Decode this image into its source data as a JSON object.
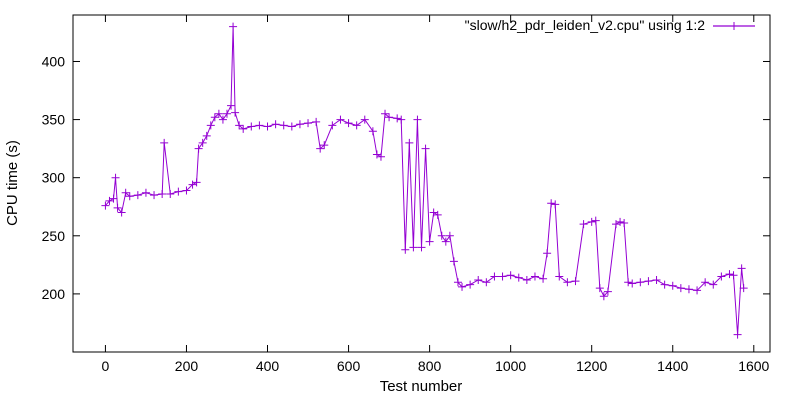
{
  "chart_data": {
    "type": "line",
    "xlabel": "Test number",
    "ylabel": "CPU time (s)",
    "xlim": [
      -80,
      1640
    ],
    "ylim": [
      150,
      440
    ],
    "xticks": [
      0,
      200,
      400,
      600,
      800,
      1000,
      1200,
      1400,
      1600
    ],
    "yticks": [
      200,
      250,
      300,
      350,
      400
    ],
    "grid": false,
    "legend_position": "top-right",
    "color": "#9400D3",
    "marker": "plus",
    "series": [
      {
        "name": "\"slow/h2_pdr_leiden_v2.cpu\" using 1:2",
        "x": [
          0,
          10,
          20,
          25,
          30,
          40,
          50,
          60,
          80,
          100,
          120,
          140,
          145,
          160,
          180,
          200,
          215,
          225,
          230,
          240,
          250,
          260,
          270,
          280,
          290,
          300,
          310,
          315,
          320,
          330,
          340,
          360,
          380,
          400,
          420,
          440,
          460,
          480,
          500,
          520,
          530,
          540,
          560,
          580,
          600,
          620,
          640,
          660,
          670,
          680,
          690,
          700,
          720,
          730,
          740,
          750,
          760,
          770,
          780,
          790,
          800,
          810,
          820,
          830,
          840,
          850,
          860,
          870,
          880,
          900,
          920,
          940,
          960,
          980,
          1000,
          1020,
          1040,
          1060,
          1080,
          1090,
          1100,
          1110,
          1120,
          1140,
          1160,
          1180,
          1200,
          1210,
          1220,
          1230,
          1240,
          1260,
          1270,
          1280,
          1290,
          1300,
          1320,
          1340,
          1360,
          1380,
          1400,
          1420,
          1440,
          1460,
          1480,
          1500,
          1520,
          1540,
          1550,
          1560,
          1570,
          1575
        ],
        "y": [
          276,
          280,
          282,
          300,
          274,
          270,
          287,
          284,
          285,
          287,
          285,
          286,
          330,
          286,
          288,
          289,
          294,
          296,
          325,
          330,
          336,
          345,
          352,
          355,
          350,
          355,
          362,
          430,
          356,
          345,
          342,
          344,
          345,
          344,
          346,
          345,
          344,
          346,
          347,
          348,
          325,
          328,
          345,
          350,
          347,
          345,
          350,
          340,
          320,
          318,
          355,
          352,
          351,
          350,
          238,
          330,
          240,
          350,
          240,
          325,
          245,
          270,
          268,
          250,
          245,
          250,
          228,
          210,
          206,
          208,
          212,
          210,
          215,
          215,
          216,
          214,
          212,
          215,
          213,
          235,
          278,
          277,
          215,
          210,
          211,
          260,
          262,
          263,
          205,
          198,
          202,
          260,
          262,
          261,
          210,
          209,
          210,
          211,
          212,
          208,
          207,
          205,
          204,
          203,
          210,
          208,
          215,
          217,
          216,
          165,
          222,
          205
        ]
      }
    ]
  }
}
